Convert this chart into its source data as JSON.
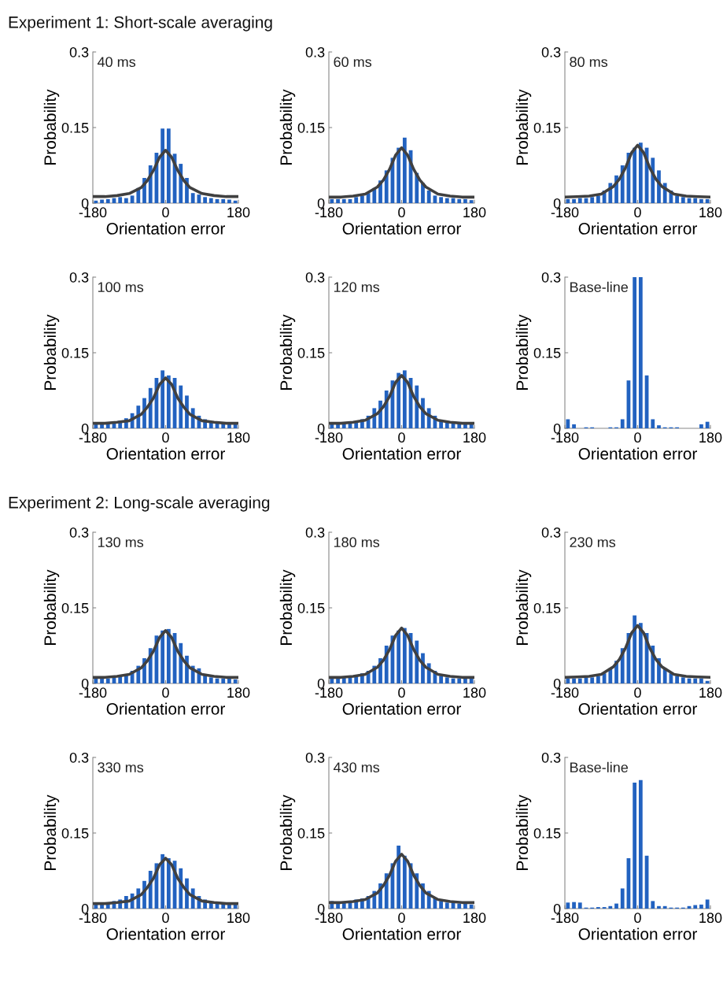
{
  "chart_data": [
    {
      "type": "histogram",
      "title": "40 ms",
      "annotations": [
        "Experiment 1: Short-scale averaging"
      ],
      "xlabel": "Orientation error",
      "ylabel": "Probability",
      "bins": [
        -180,
        -165,
        -150,
        -135,
        -120,
        -105,
        -90,
        -75,
        -60,
        -45,
        -30,
        -15,
        0,
        15,
        30,
        45,
        60,
        75,
        90,
        105,
        120,
        135,
        150,
        165,
        180
      ],
      "values": [
        0.005,
        0.007,
        0.008,
        0.01,
        0.012,
        0.01,
        0.015,
        0.03,
        0.05,
        0.075,
        0.1,
        0.148,
        0.148,
        0.098,
        0.078,
        0.05,
        0.02,
        0.017,
        0.012,
        0.01,
        0.008,
        0.008,
        0.007,
        0.005
      ],
      "color": "#2262c0",
      "series": [
        {
          "type": "line",
          "color": "#404040",
          "x": [
            -180,
            -150,
            -120,
            -90,
            -60,
            -45,
            -30,
            -15,
            0,
            15,
            30,
            45,
            60,
            90,
            120,
            150,
            180
          ],
          "values": [
            0.013,
            0.013,
            0.015,
            0.019,
            0.031,
            0.045,
            0.065,
            0.091,
            0.105,
            0.091,
            0.065,
            0.045,
            0.031,
            0.019,
            0.015,
            0.013,
            0.013
          ]
        }
      ],
      "xlim": [
        -180,
        180
      ],
      "ylim": [
        0,
        0.3
      ],
      "xticks": [
        -180,
        0,
        180
      ],
      "yticks": [
        0,
        0.15,
        0.3
      ]
    },
    {
      "type": "histogram",
      "title": "60 ms",
      "xlabel": "Orientation error",
      "ylabel": "Probability",
      "bins": [
        -180,
        -165,
        -150,
        -135,
        -120,
        -105,
        -90,
        -75,
        -60,
        -45,
        -30,
        -15,
        0,
        15,
        30,
        45,
        60,
        75,
        90,
        105,
        120,
        135,
        150,
        165,
        180
      ],
      "values": [
        0.008,
        0.008,
        0.008,
        0.008,
        0.012,
        0.015,
        0.02,
        0.03,
        0.045,
        0.065,
        0.09,
        0.11,
        0.13,
        0.105,
        0.06,
        0.04,
        0.025,
        0.015,
        0.012,
        0.01,
        0.01,
        0.008,
        0.008,
        0.006
      ],
      "color": "#2262c0",
      "series": [
        {
          "type": "line",
          "color": "#404040",
          "x": [
            -180,
            -150,
            -120,
            -90,
            -60,
            -45,
            -30,
            -15,
            0,
            15,
            30,
            45,
            60,
            90,
            120,
            150,
            180
          ],
          "values": [
            0.012,
            0.012,
            0.014,
            0.018,
            0.032,
            0.046,
            0.067,
            0.095,
            0.11,
            0.095,
            0.067,
            0.046,
            0.032,
            0.018,
            0.014,
            0.012,
            0.012
          ]
        }
      ],
      "xlim": [
        -180,
        180
      ],
      "ylim": [
        0,
        0.3
      ],
      "xticks": [
        -180,
        0,
        180
      ],
      "yticks": [
        0,
        0.15,
        0.3
      ]
    },
    {
      "type": "histogram",
      "title": "80 ms",
      "xlabel": "Orientation error",
      "ylabel": "Probability",
      "bins": [
        -180,
        -165,
        -150,
        -135,
        -120,
        -105,
        -90,
        -75,
        -60,
        -45,
        -30,
        -15,
        0,
        15,
        30,
        45,
        60,
        75,
        90,
        105,
        120,
        135,
        150,
        165,
        180
      ],
      "values": [
        0.008,
        0.008,
        0.01,
        0.01,
        0.012,
        0.015,
        0.025,
        0.04,
        0.055,
        0.075,
        0.1,
        0.11,
        0.12,
        0.11,
        0.09,
        0.065,
        0.04,
        0.025,
        0.015,
        0.012,
        0.01,
        0.01,
        0.008,
        0.008
      ],
      "color": "#2262c0",
      "series": [
        {
          "type": "line",
          "color": "#404040",
          "x": [
            -180,
            -150,
            -120,
            -90,
            -60,
            -45,
            -30,
            -15,
            0,
            15,
            30,
            45,
            60,
            90,
            120,
            150,
            180
          ],
          "values": [
            0.012,
            0.013,
            0.014,
            0.018,
            0.033,
            0.048,
            0.07,
            0.1,
            0.115,
            0.1,
            0.07,
            0.048,
            0.033,
            0.018,
            0.014,
            0.013,
            0.012
          ]
        }
      ],
      "xlim": [
        -180,
        180
      ],
      "ylim": [
        0,
        0.3
      ],
      "xticks": [
        -180,
        0,
        180
      ],
      "yticks": [
        0,
        0.15,
        0.3
      ]
    },
    {
      "type": "histogram",
      "title": "100 ms",
      "xlabel": "Orientation error",
      "ylabel": "Probability",
      "bins": [
        -180,
        -165,
        -150,
        -135,
        -120,
        -105,
        -90,
        -75,
        -60,
        -45,
        -30,
        -15,
        0,
        15,
        30,
        45,
        60,
        75,
        90,
        105,
        120,
        135,
        150,
        165,
        180
      ],
      "values": [
        0.008,
        0.008,
        0.01,
        0.012,
        0.015,
        0.02,
        0.03,
        0.045,
        0.06,
        0.08,
        0.1,
        0.115,
        0.105,
        0.1,
        0.085,
        0.065,
        0.04,
        0.025,
        0.018,
        0.012,
        0.01,
        0.01,
        0.008,
        0.008
      ],
      "color": "#2262c0",
      "series": [
        {
          "type": "line",
          "color": "#404040",
          "x": [
            -180,
            -150,
            -120,
            -90,
            -60,
            -45,
            -30,
            -15,
            0,
            15,
            30,
            45,
            60,
            90,
            120,
            150,
            180
          ],
          "values": [
            0.01,
            0.01,
            0.012,
            0.015,
            0.028,
            0.042,
            0.06,
            0.087,
            0.1,
            0.087,
            0.06,
            0.042,
            0.028,
            0.015,
            0.012,
            0.01,
            0.01
          ]
        }
      ],
      "xlim": [
        -180,
        180
      ],
      "ylim": [
        0,
        0.3
      ],
      "xticks": [
        -180,
        0,
        180
      ],
      "yticks": [
        0,
        0.15,
        0.3
      ]
    },
    {
      "type": "histogram",
      "title": "120 ms",
      "xlabel": "Orientation error",
      "ylabel": "Probability",
      "bins": [
        -180,
        -165,
        -150,
        -135,
        -120,
        -105,
        -90,
        -75,
        -60,
        -45,
        -30,
        -15,
        0,
        15,
        30,
        45,
        60,
        75,
        90,
        105,
        120,
        135,
        150,
        165,
        180
      ],
      "values": [
        0.008,
        0.008,
        0.01,
        0.01,
        0.012,
        0.018,
        0.025,
        0.04,
        0.055,
        0.075,
        0.095,
        0.11,
        0.115,
        0.1,
        0.085,
        0.06,
        0.04,
        0.025,
        0.015,
        0.012,
        0.01,
        0.01,
        0.008,
        0.008
      ],
      "color": "#2262c0",
      "series": [
        {
          "type": "line",
          "color": "#404040",
          "x": [
            -180,
            -150,
            -120,
            -90,
            -60,
            -45,
            -30,
            -15,
            0,
            15,
            30,
            45,
            60,
            90,
            120,
            150,
            180
          ],
          "values": [
            0.01,
            0.01,
            0.012,
            0.016,
            0.029,
            0.043,
            0.063,
            0.091,
            0.105,
            0.091,
            0.063,
            0.043,
            0.029,
            0.016,
            0.012,
            0.01,
            0.01
          ]
        }
      ],
      "xlim": [
        -180,
        180
      ],
      "ylim": [
        0,
        0.3
      ],
      "xticks": [
        -180,
        0,
        180
      ],
      "yticks": [
        0,
        0.15,
        0.3
      ]
    },
    {
      "type": "histogram",
      "title": "Base-line",
      "xlabel": "Orientation error",
      "ylabel": "Probability",
      "bins": [
        -180,
        -165,
        -150,
        -135,
        -120,
        -105,
        -90,
        -75,
        -60,
        -45,
        -30,
        -15,
        0,
        15,
        30,
        45,
        60,
        75,
        90,
        105,
        120,
        135,
        150,
        165,
        180
      ],
      "values": [
        0.018,
        0.008,
        0,
        0.002,
        0.002,
        0,
        0,
        0.002,
        0.002,
        0.018,
        0.095,
        0.3,
        0.3,
        0.105,
        0.018,
        0.006,
        0.002,
        0.002,
        0.002,
        0,
        0,
        0,
        0.008,
        0.013
      ],
      "color": "#2262c0",
      "xlim": [
        -180,
        180
      ],
      "ylim": [
        0,
        0.3
      ],
      "xticks": [
        -180,
        0,
        180
      ],
      "yticks": [
        0,
        0.15,
        0.3
      ]
    },
    {
      "type": "histogram",
      "title": "130 ms",
      "annotations": [
        "Experiment 2: Long-scale averaging"
      ],
      "xlabel": "Orientation error",
      "ylabel": "Probability",
      "bins": [
        -180,
        -165,
        -150,
        -135,
        -120,
        -105,
        -90,
        -75,
        -60,
        -45,
        -30,
        -15,
        0,
        15,
        30,
        45,
        60,
        75,
        90,
        105,
        120,
        135,
        150,
        165,
        180
      ],
      "values": [
        0.01,
        0.01,
        0.01,
        0.012,
        0.015,
        0.018,
        0.025,
        0.035,
        0.05,
        0.07,
        0.095,
        0.105,
        0.108,
        0.1,
        0.08,
        0.055,
        0.035,
        0.03,
        0.018,
        0.012,
        0.01,
        0.01,
        0.01,
        0.008
      ],
      "color": "#2262c0",
      "series": [
        {
          "type": "line",
          "color": "#404040",
          "x": [
            -180,
            -150,
            -120,
            -90,
            -60,
            -45,
            -30,
            -15,
            0,
            15,
            30,
            45,
            60,
            90,
            120,
            150,
            180
          ],
          "values": [
            0.012,
            0.012,
            0.014,
            0.018,
            0.031,
            0.045,
            0.064,
            0.091,
            0.105,
            0.091,
            0.064,
            0.045,
            0.031,
            0.018,
            0.014,
            0.012,
            0.012
          ]
        }
      ],
      "xlim": [
        -180,
        180
      ],
      "ylim": [
        0,
        0.3
      ],
      "xticks": [
        -180,
        0,
        180
      ],
      "yticks": [
        0,
        0.15,
        0.3
      ]
    },
    {
      "type": "histogram",
      "title": "180 ms",
      "xlabel": "Orientation error",
      "ylabel": "Probability",
      "bins": [
        -180,
        -165,
        -150,
        -135,
        -120,
        -105,
        -90,
        -75,
        -60,
        -45,
        -30,
        -15,
        0,
        15,
        30,
        45,
        60,
        75,
        90,
        105,
        120,
        135,
        150,
        165,
        180
      ],
      "values": [
        0.01,
        0.01,
        0.012,
        0.012,
        0.015,
        0.02,
        0.025,
        0.035,
        0.05,
        0.075,
        0.095,
        0.105,
        0.11,
        0.1,
        0.085,
        0.06,
        0.04,
        0.025,
        0.015,
        0.012,
        0.01,
        0.01,
        0.01,
        0.01
      ],
      "color": "#2262c0",
      "series": [
        {
          "type": "line",
          "color": "#404040",
          "x": [
            -180,
            -150,
            -120,
            -90,
            -60,
            -45,
            -30,
            -15,
            0,
            15,
            30,
            45,
            60,
            90,
            120,
            150,
            180
          ],
          "values": [
            0.012,
            0.012,
            0.014,
            0.018,
            0.032,
            0.046,
            0.067,
            0.095,
            0.11,
            0.095,
            0.067,
            0.046,
            0.032,
            0.018,
            0.014,
            0.012,
            0.012
          ]
        }
      ],
      "xlim": [
        -180,
        180
      ],
      "ylim": [
        0,
        0.3
      ],
      "xticks": [
        -180,
        0,
        180
      ],
      "yticks": [
        0,
        0.15,
        0.3
      ]
    },
    {
      "type": "histogram",
      "title": "230 ms",
      "xlabel": "Orientation error",
      "ylabel": "Probability",
      "bins": [
        -180,
        -165,
        -150,
        -135,
        -120,
        -105,
        -90,
        -75,
        -60,
        -45,
        -30,
        -15,
        0,
        15,
        30,
        45,
        60,
        75,
        90,
        105,
        120,
        135,
        150,
        165,
        180
      ],
      "values": [
        0.01,
        0.01,
        0.01,
        0.012,
        0.012,
        0.015,
        0.02,
        0.03,
        0.045,
        0.07,
        0.1,
        0.135,
        0.12,
        0.1,
        0.075,
        0.05,
        0.03,
        0.02,
        0.015,
        0.012,
        0.01,
        0.01,
        0.01,
        0.005
      ],
      "color": "#2262c0",
      "series": [
        {
          "type": "line",
          "color": "#404040",
          "x": [
            -180,
            -150,
            -120,
            -90,
            -60,
            -45,
            -30,
            -15,
            0,
            15,
            30,
            45,
            60,
            90,
            120,
            150,
            180
          ],
          "values": [
            0.012,
            0.013,
            0.014,
            0.018,
            0.033,
            0.048,
            0.07,
            0.1,
            0.115,
            0.1,
            0.07,
            0.048,
            0.033,
            0.018,
            0.014,
            0.013,
            0.012
          ]
        }
      ],
      "xlim": [
        -180,
        180
      ],
      "ylim": [
        0,
        0.3
      ],
      "xticks": [
        -180,
        0,
        180
      ],
      "yticks": [
        0,
        0.15,
        0.3
      ]
    },
    {
      "type": "histogram",
      "title": "330 ms",
      "xlabel": "Orientation error",
      "ylabel": "Probability",
      "bins": [
        -180,
        -165,
        -150,
        -135,
        -120,
        -105,
        -90,
        -75,
        -60,
        -45,
        -30,
        -15,
        0,
        15,
        30,
        45,
        60,
        75,
        90,
        105,
        120,
        135,
        150,
        165,
        180
      ],
      "values": [
        0.01,
        0.01,
        0.012,
        0.015,
        0.018,
        0.025,
        0.03,
        0.04,
        0.055,
        0.075,
        0.09,
        0.108,
        0.1,
        0.095,
        0.08,
        0.06,
        0.04,
        0.025,
        0.018,
        0.012,
        0.01,
        0.01,
        0.008,
        0.008
      ],
      "color": "#2262c0",
      "series": [
        {
          "type": "line",
          "color": "#404040",
          "x": [
            -180,
            -150,
            -120,
            -90,
            -60,
            -45,
            -30,
            -15,
            0,
            15,
            30,
            45,
            60,
            90,
            120,
            150,
            180
          ],
          "values": [
            0.01,
            0.01,
            0.012,
            0.015,
            0.028,
            0.042,
            0.06,
            0.087,
            0.1,
            0.087,
            0.06,
            0.042,
            0.028,
            0.015,
            0.012,
            0.01,
            0.01
          ]
        }
      ],
      "xlim": [
        -180,
        180
      ],
      "ylim": [
        0,
        0.3
      ],
      "xticks": [
        -180,
        0,
        180
      ],
      "yticks": [
        0,
        0.15,
        0.3
      ]
    },
    {
      "type": "histogram",
      "title": "430 ms",
      "xlabel": "Orientation error",
      "ylabel": "Probability",
      "bins": [
        -180,
        -165,
        -150,
        -135,
        -120,
        -105,
        -90,
        -75,
        -60,
        -45,
        -30,
        -15,
        0,
        15,
        30,
        45,
        60,
        75,
        90,
        105,
        120,
        135,
        150,
        165,
        180
      ],
      "values": [
        0.015,
        0.012,
        0.012,
        0.015,
        0.018,
        0.02,
        0.025,
        0.035,
        0.05,
        0.07,
        0.09,
        0.125,
        0.105,
        0.09,
        0.07,
        0.05,
        0.035,
        0.022,
        0.015,
        0.012,
        0.012,
        0.01,
        0.01,
        0.008
      ],
      "color": "#2262c0",
      "series": [
        {
          "type": "line",
          "color": "#404040",
          "x": [
            -180,
            -150,
            -120,
            -90,
            -60,
            -45,
            -30,
            -15,
            0,
            15,
            30,
            45,
            60,
            90,
            120,
            150,
            180
          ],
          "values": [
            0.012,
            0.012,
            0.014,
            0.018,
            0.031,
            0.046,
            0.066,
            0.094,
            0.108,
            0.094,
            0.066,
            0.046,
            0.031,
            0.018,
            0.014,
            0.012,
            0.012
          ]
        }
      ],
      "xlim": [
        -180,
        180
      ],
      "ylim": [
        0,
        0.3
      ],
      "xticks": [
        -180,
        0,
        180
      ],
      "yticks": [
        0,
        0.15,
        0.3
      ]
    },
    {
      "type": "histogram",
      "title": "Base-line",
      "xlabel": "Orientation error",
      "ylabel": "Probability",
      "bins": [
        -180,
        -165,
        -150,
        -135,
        -120,
        -105,
        -90,
        -75,
        -60,
        -45,
        -30,
        -15,
        0,
        15,
        30,
        45,
        60,
        75,
        90,
        105,
        120,
        135,
        150,
        165,
        180
      ],
      "values": [
        0.012,
        0.013,
        0.012,
        0.002,
        0.002,
        0.003,
        0.003,
        0.005,
        0.01,
        0.04,
        0.1,
        0.25,
        0.255,
        0.105,
        0.015,
        0.005,
        0.005,
        0.002,
        0.002,
        0.002,
        0.005,
        0.007,
        0.008,
        0.018
      ],
      "color": "#2262c0",
      "xlim": [
        -180,
        180
      ],
      "ylim": [
        0,
        0.3
      ],
      "xticks": [
        -180,
        0,
        180
      ],
      "yticks": [
        0,
        0.15,
        0.3
      ]
    }
  ]
}
